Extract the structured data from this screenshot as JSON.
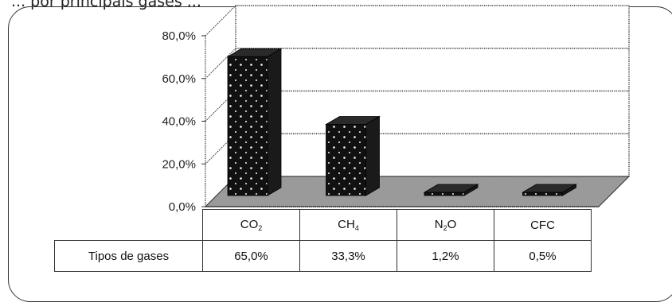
{
  "caption_fragment": "... por principais gases ...",
  "chart_data": {
    "type": "bar",
    "categories": [
      "CO2",
      "CH4",
      "N2O",
      "CFC"
    ],
    "category_labels": [
      {
        "base": "CO",
        "sub": "2"
      },
      {
        "base": "CH",
        "sub": "4"
      },
      {
        "base": "N",
        "sub": "2",
        "rest": "O"
      },
      {
        "base": "CFC",
        "sub": ""
      }
    ],
    "series": [
      {
        "name": "Tipos de gases",
        "values": [
          65.0,
          33.3,
          1.2,
          0.5
        ]
      }
    ],
    "value_labels": [
      "65,0%",
      "33,3%",
      "1,2%",
      "0,5%"
    ],
    "y_ticks": [
      "0,0%",
      "20,0%",
      "40,0%",
      "60,0%",
      "80,0%"
    ],
    "ylim": [
      0,
      80
    ],
    "grid": true,
    "three_d": true,
    "legend": "data table below chart",
    "title": "",
    "xlabel": "",
    "ylabel": "",
    "colors": {
      "bar": "#111111",
      "floor": "#9a9a9a",
      "dots": "#ffffff"
    }
  }
}
